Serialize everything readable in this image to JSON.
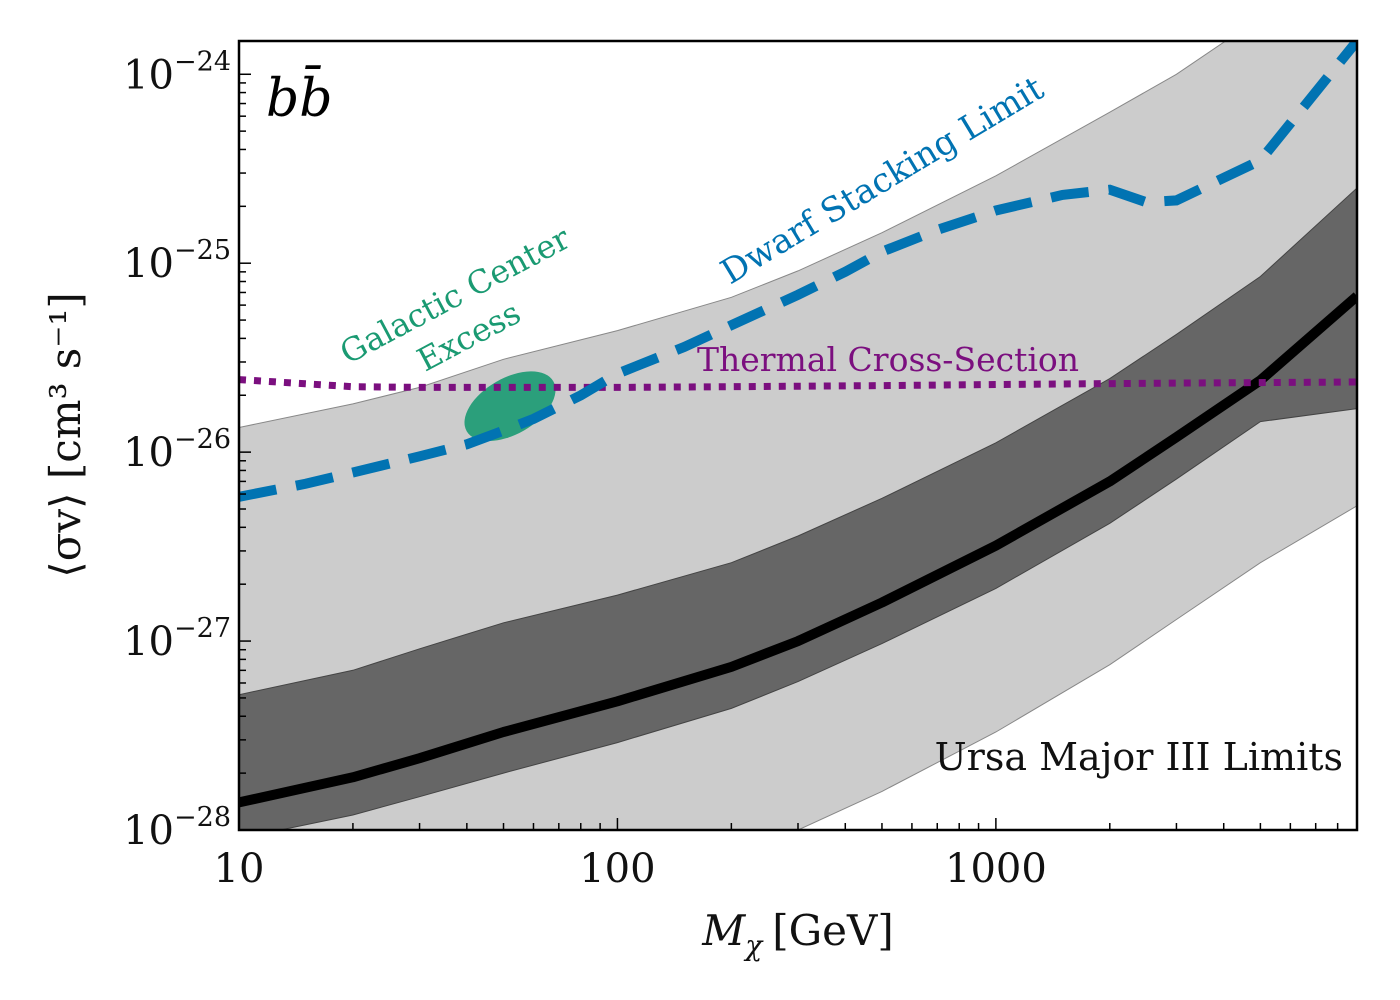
{
  "chart_data": {
    "type": "line",
    "channel_label": "bb̄",
    "xlabel": "M_χ [GeV]",
    "xlabel_main": "M",
    "xlabel_sub": "χ",
    "xlabel_unit": "[GeV]",
    "ylabel": "⟨σv⟩ [cm³ s⁻¹]",
    "xscale": "log",
    "yscale": "log",
    "xlim": [
      10,
      9000
    ],
    "ylim": [
      1e-28,
      1.5e-24
    ],
    "x_ticks": [
      {
        "value": 10,
        "label": "10"
      },
      {
        "value": 100,
        "label": "100"
      },
      {
        "value": 1000,
        "label": "1000"
      }
    ],
    "y_ticks": [
      {
        "value": 1e-28,
        "label": "10",
        "exp": "−28"
      },
      {
        "value": 1e-27,
        "label": "10",
        "exp": "−27"
      },
      {
        "value": 1e-26,
        "label": "10",
        "exp": "−26"
      },
      {
        "value": 1e-25,
        "label": "10",
        "exp": "−25"
      },
      {
        "value": 1e-24,
        "label": "10",
        "exp": "−24"
      }
    ],
    "grid": false,
    "colors": {
      "limit": "#000000",
      "band_68": "#666666",
      "band_95": "#cccccc",
      "dwarf": "#0173b2",
      "thermal": "#7b0f7f",
      "gce": "#1a9a72"
    },
    "series": [
      {
        "name": "Ursa Major III Limits",
        "style": "solid",
        "x": [
          10,
          20,
          30,
          50,
          100,
          200,
          300,
          500,
          1000,
          2000,
          3000,
          5000,
          9000
        ],
        "values": [
          1.4e-28,
          1.9e-28,
          2.4e-28,
          3.3e-28,
          4.8e-28,
          7.3e-28,
          1e-27,
          1.6e-27,
          3.2e-27,
          7e-27,
          1.2e-26,
          2.4e-26,
          6.7e-26
        ]
      },
      {
        "name": "68% band",
        "style": "band",
        "x": [
          10,
          20,
          30,
          50,
          100,
          200,
          300,
          500,
          1000,
          2000,
          3000,
          5000,
          9000
        ],
        "lower": [
          9e-29,
          1.2e-28,
          1.5e-28,
          2e-28,
          2.9e-28,
          4.4e-28,
          6.1e-28,
          9.7e-28,
          1.9e-27,
          4.2e-27,
          7.2e-27,
          1.45e-26,
          1.7e-26
        ],
        "upper": [
          5.2e-28,
          7e-28,
          9.1e-28,
          1.25e-27,
          1.75e-27,
          2.6e-27,
          3.6e-27,
          5.7e-27,
          1.12e-26,
          2.45e-26,
          4.2e-26,
          8.5e-26,
          2.5e-25
        ]
      },
      {
        "name": "95% band",
        "style": "band",
        "x": [
          10,
          20,
          30,
          50,
          100,
          200,
          300,
          500,
          1000,
          2000,
          3000,
          5000,
          9000
        ],
        "lower": [
          5e-29,
          6e-29,
          7e-29,
          8.5e-29,
          9e-29,
          9.5e-29,
          1e-28,
          1.6e-28,
          3.3e-28,
          7.5e-28,
          1.3e-27,
          2.6e-27,
          5.2e-27
        ],
        "upper": [
          1.35e-26,
          1.8e-26,
          2.2e-26,
          3.1e-26,
          4.4e-26,
          6.6e-26,
          9.1e-26,
          1.45e-25,
          2.9e-25,
          6.3e-25,
          1e-24,
          2e-24,
          2.4e-24
        ]
      },
      {
        "name": "Dwarf Stacking Limit",
        "style": "dashed",
        "x": [
          10,
          15,
          20,
          30,
          40,
          50,
          60,
          80,
          100,
          150,
          200,
          300,
          400,
          500,
          700,
          1000,
          1500,
          2000,
          2500,
          3000,
          5000,
          9000
        ],
        "values": [
          5.8e-27,
          6.8e-27,
          7.8e-27,
          9.5e-27,
          1.1e-26,
          1.3e-26,
          1.5e-26,
          2e-26,
          2.6e-26,
          3.6e-26,
          4.7e-26,
          6.8e-26,
          9e-26,
          1.15e-25,
          1.5e-25,
          1.9e-25,
          2.3e-25,
          2.45e-25,
          2.1e-25,
          2.15e-25,
          3.5e-25,
          1.5e-24
        ]
      },
      {
        "name": "Thermal Cross-Section",
        "style": "dotted",
        "x": [
          10,
          15,
          20,
          30,
          50,
          100,
          200,
          500,
          1000,
          3000,
          9000
        ],
        "values": [
          2.42e-26,
          2.3e-26,
          2.22e-26,
          2.2e-26,
          2.2e-26,
          2.2e-26,
          2.22e-26,
          2.25e-26,
          2.28e-26,
          2.32e-26,
          2.35e-26
        ]
      }
    ],
    "region": {
      "name": "Galactic Center Excess",
      "label_lines": [
        "Galactic Center",
        "Excess"
      ],
      "center": [
        52,
        1.75e-26
      ]
    },
    "annotations": {
      "main_limit_label": "Ursa Major III Limits",
      "dwarf_label": "Dwarf Stacking Limit",
      "thermal_label": "Thermal Cross-Section",
      "gce_line1": "Galactic Center",
      "gce_line2": "Excess"
    }
  }
}
